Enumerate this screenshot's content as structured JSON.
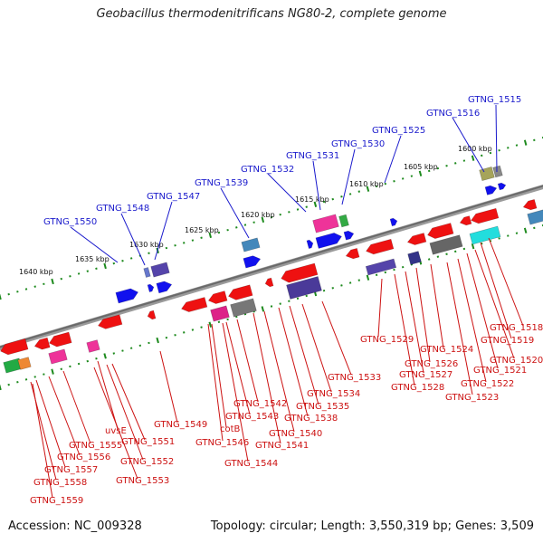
{
  "header": {
    "title": "Geobacillus thermodenitrificans NG80-2, complete genome"
  },
  "footer": {
    "accession": "Accession: NC_009328",
    "topology": "Topology: circular; Length: 3,550,319 bp; Genes: 3,509"
  },
  "scale": {
    "ticks": [
      "1600 kbp",
      "1605 kbp",
      "1610 kbp",
      "1615 kbp",
      "1620 kbp",
      "1625 kbp",
      "1630 kbp",
      "1635 kbp",
      "1640 kbp"
    ]
  },
  "labels": {
    "forward": [
      "GTNG_1515",
      "GTNG_1516",
      "GTNG_1525",
      "GTNG_1530",
      "GTNG_1531",
      "GTNG_1532",
      "GTNG_1539",
      "GTNG_1547",
      "GTNG_1548",
      "GTNG_1550"
    ],
    "reverse": [
      "GTNG_1518",
      "GTNG_1519",
      "GTNG_1520",
      "GTNG_1521",
      "GTNG_1522",
      "GTNG_1523",
      "GTNG_1524",
      "GTNG_1526",
      "GTNG_1527",
      "GTNG_1528",
      "GTNG_1529",
      "GTNG_1533",
      "GTNG_1534",
      "GTNG_1535",
      "GTNG_1538",
      "GTNG_1540",
      "GTNG_1541",
      "GTNG_1542",
      "GTNG_1543",
      "GTNG_1544",
      "GTNG_1546",
      "cotB",
      "GTNG_1549",
      "uvsE",
      "GTNG_1551",
      "GTNG_1552",
      "GTNG_1553",
      "GTNG_1555",
      "GTNG_1556",
      "GTNG_1557",
      "GTNG_1558",
      "GTNG_1559"
    ]
  },
  "colors": {
    "forward_label": "#1a1acc",
    "reverse_label": "#cc1111",
    "backbone": "#777777",
    "tick": "#1d8a1d",
    "gene_red": "#ee1111",
    "gene_blue": "#1111ee"
  }
}
